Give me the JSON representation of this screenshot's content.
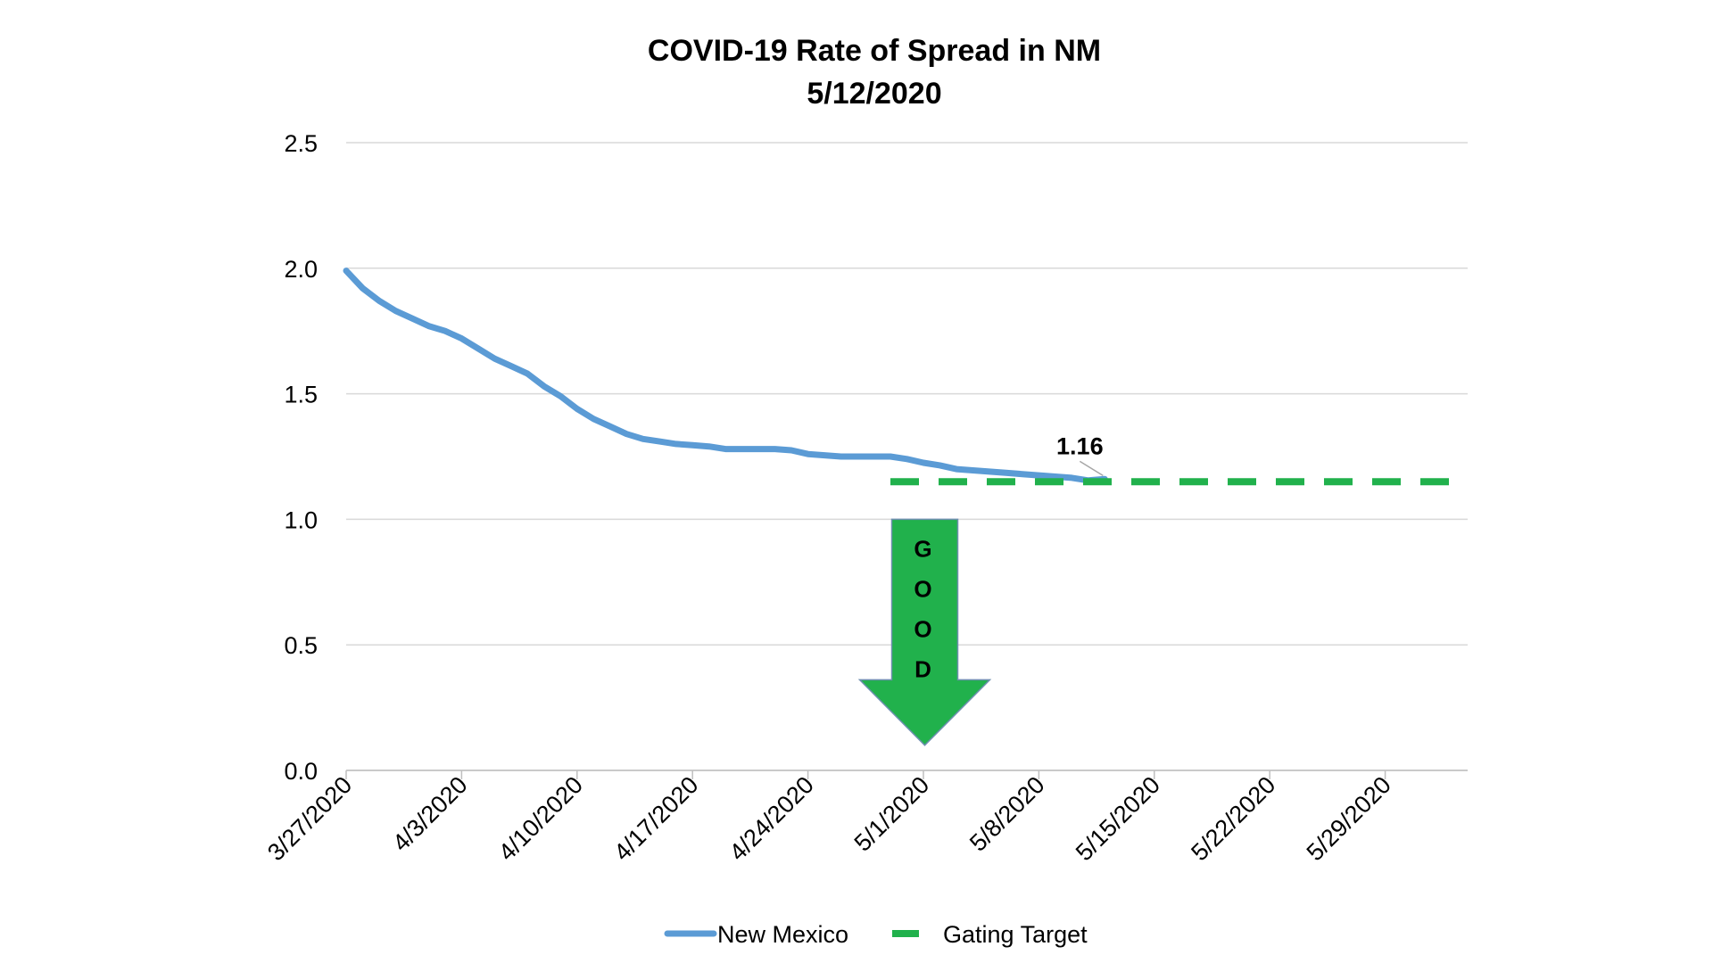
{
  "chart_data": {
    "type": "line",
    "title": "COVID-19 Rate of Spread in NM",
    "subtitle": "5/12/2020",
    "xlabel": "",
    "ylabel": "",
    "ylim": [
      0,
      2.5
    ],
    "y_ticks": [
      "0.0",
      "0.5",
      "1.0",
      "1.5",
      "2.0",
      "2.5"
    ],
    "x_ticks": [
      "3/27/2020",
      "4/3/2020",
      "4/10/2020",
      "4/17/2020",
      "4/24/2020",
      "5/1/2020",
      "5/8/2020",
      "5/15/2020",
      "5/22/2020",
      "5/29/2020"
    ],
    "x_range": [
      "3/27/2020",
      "6/3/2020"
    ],
    "grid": true,
    "legend_position": "bottom",
    "series": [
      {
        "name": "New Mexico",
        "color": "#5b9bd5",
        "style": "solid",
        "x": [
          "3/27/2020",
          "3/28/2020",
          "3/29/2020",
          "3/30/2020",
          "3/31/2020",
          "4/1/2020",
          "4/2/2020",
          "4/3/2020",
          "4/4/2020",
          "4/5/2020",
          "4/6/2020",
          "4/7/2020",
          "4/8/2020",
          "4/9/2020",
          "4/10/2020",
          "4/11/2020",
          "4/12/2020",
          "4/13/2020",
          "4/14/2020",
          "4/15/2020",
          "4/16/2020",
          "4/17/2020",
          "4/18/2020",
          "4/19/2020",
          "4/20/2020",
          "4/21/2020",
          "4/22/2020",
          "4/23/2020",
          "4/24/2020",
          "4/25/2020",
          "4/26/2020",
          "4/27/2020",
          "4/28/2020",
          "4/29/2020",
          "4/30/2020",
          "5/1/2020",
          "5/2/2020",
          "5/3/2020",
          "5/4/2020",
          "5/5/2020",
          "5/6/2020",
          "5/7/2020",
          "5/8/2020",
          "5/9/2020",
          "5/10/2020",
          "5/11/2020",
          "5/12/2020"
        ],
        "values": [
          1.99,
          1.92,
          1.87,
          1.83,
          1.8,
          1.77,
          1.75,
          1.72,
          1.68,
          1.64,
          1.61,
          1.58,
          1.53,
          1.49,
          1.44,
          1.4,
          1.37,
          1.34,
          1.32,
          1.31,
          1.3,
          1.295,
          1.29,
          1.28,
          1.28,
          1.28,
          1.28,
          1.275,
          1.26,
          1.255,
          1.25,
          1.25,
          1.25,
          1.25,
          1.24,
          1.225,
          1.215,
          1.2,
          1.195,
          1.19,
          1.185,
          1.18,
          1.175,
          1.17,
          1.165,
          1.155,
          1.16
        ]
      },
      {
        "name": "Gating Target",
        "color": "#21b14c",
        "style": "dashed",
        "x": [
          "4/29/2020",
          "6/3/2020"
        ],
        "values": [
          1.15,
          1.15
        ]
      }
    ],
    "annotations": [
      {
        "text": "1.16",
        "x": "5/12/2020",
        "y": 1.16
      },
      {
        "text": "GOOD",
        "letters": [
          "G",
          "O",
          "O",
          "D"
        ],
        "kind": "down-arrow",
        "color": "#21b14c",
        "x": "4/30/2020",
        "y_top": 1.0,
        "y_tip": 0.1
      }
    ]
  }
}
